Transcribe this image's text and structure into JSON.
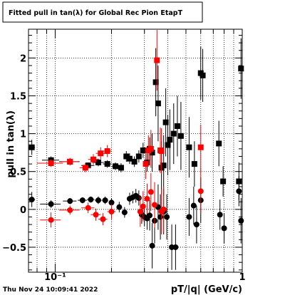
{
  "header": {
    "title": "Fitted pull in tan(λ) for Global Rec Pion EtapT"
  },
  "footer": {
    "timestamp": "Thu Nov 24 10:09:41 2022"
  },
  "chart_data": {
    "type": "scatter",
    "title": "Fitted pull in tan(λ) for Global Rec Pion EtapT",
    "xlabel": "pT/|q| (GeV/c)",
    "ylabel": "pull in tan(λ)",
    "x_scale": "log",
    "xlim": [
      0.072,
      1.0
    ],
    "ylim": [
      -0.83,
      2.38
    ],
    "x_tick_labels": [
      "10⁻¹",
      "1"
    ],
    "y_ticks": [
      -0.5,
      0,
      0.5,
      1,
      1.5,
      2
    ],
    "y_tick_labels": [
      "−0.5",
      "0",
      "0.5",
      "1",
      "1.5",
      "2"
    ],
    "grid": true,
    "legend": "none",
    "series": [
      {
        "marker": "square",
        "color": "#000000",
        "points": [
          [
            0.075,
            0.82,
            0.003,
            0.1
          ],
          [
            0.095,
            0.65,
            0.01,
            0.05
          ],
          [
            0.12,
            0.63,
            0.015,
            0.04
          ],
          [
            0.15,
            0.58,
            0.012,
            0.04
          ],
          [
            0.17,
            0.62,
            0.012,
            0.05
          ],
          [
            0.19,
            0.6,
            0.01,
            0.05
          ],
          [
            0.21,
            0.57,
            0.01,
            0.05
          ],
          [
            0.225,
            0.55,
            0.008,
            0.06
          ],
          [
            0.24,
            0.7,
            0.008,
            0.07
          ],
          [
            0.25,
            0.67,
            0.008,
            0.07
          ],
          [
            0.265,
            0.63,
            0.007,
            0.07
          ],
          [
            0.28,
            0.7,
            0.007,
            0.08
          ],
          [
            0.295,
            0.78,
            0.007,
            0.1
          ],
          [
            0.31,
            0.62,
            0.006,
            0.12
          ],
          [
            0.32,
            0.8,
            0.006,
            0.15
          ],
          [
            0.33,
            0.75,
            0.006,
            0.25
          ],
          [
            0.345,
            1.68,
            0.006,
            0.45
          ],
          [
            0.355,
            1.4,
            0.006,
            0.5
          ],
          [
            0.37,
            0.55,
            0.006,
            0.35
          ],
          [
            0.38,
            0.58,
            0.006,
            0.4
          ],
          [
            0.39,
            1.15,
            0.006,
            0.45
          ],
          [
            0.4,
            0.85,
            0.006,
            0.4
          ],
          [
            0.41,
            0.92,
            0.006,
            0.4
          ],
          [
            0.43,
            1.0,
            0.006,
            0.4
          ],
          [
            0.45,
            1.1,
            0.006,
            0.4
          ],
          [
            0.47,
            0.97,
            0.006,
            0.45
          ],
          [
            0.52,
            0.82,
            0.01,
            0.4
          ],
          [
            0.555,
            0.6,
            0.01,
            0.3
          ],
          [
            0.6,
            1.8,
            0.01,
            0.35
          ],
          [
            0.615,
            1.77,
            0.01,
            0.35
          ],
          [
            0.75,
            0.87,
            0.02,
            0.3
          ],
          [
            0.79,
            0.37,
            0.02,
            0.2
          ],
          [
            0.96,
            0.37,
            0.02,
            0.25
          ],
          [
            0.985,
            1.86,
            0.01,
            0.4
          ]
        ]
      },
      {
        "marker": "square",
        "color": "#ff0000",
        "points": [
          [
            0.095,
            0.61,
            0.015,
            0.05
          ],
          [
            0.12,
            0.63,
            0.012,
            0.05
          ],
          [
            0.145,
            0.55,
            0.01,
            0.06
          ],
          [
            0.16,
            0.66,
            0.01,
            0.07
          ],
          [
            0.175,
            0.74,
            0.01,
            0.08
          ],
          [
            0.19,
            0.77,
            0.01,
            0.08
          ],
          [
            0.305,
            0.6,
            0.008,
            0.2
          ],
          [
            0.315,
            0.78,
            0.008,
            0.2
          ],
          [
            0.325,
            0.8,
            0.008,
            0.25
          ],
          [
            0.35,
            1.97,
            0.008,
            0.4
          ],
          [
            0.365,
            0.78,
            0.008,
            0.3
          ],
          [
            0.37,
            0.77,
            0.008,
            0.3
          ],
          [
            0.6,
            0.82,
            0.012,
            0.3
          ]
        ]
      },
      {
        "marker": "circle",
        "color": "#000000",
        "points": [
          [
            0.075,
            0.13,
            0.003,
            0.1
          ],
          [
            0.095,
            0.07,
            0.012,
            0.05
          ],
          [
            0.12,
            0.11,
            0.01,
            0.04
          ],
          [
            0.14,
            0.12,
            0.008,
            0.04
          ],
          [
            0.155,
            0.13,
            0.007,
            0.04
          ],
          [
            0.17,
            0.12,
            0.007,
            0.05
          ],
          [
            0.185,
            0.12,
            0.007,
            0.05
          ],
          [
            0.2,
            0.09,
            0.006,
            0.06
          ],
          [
            0.22,
            0.03,
            0.006,
            0.07
          ],
          [
            0.235,
            -0.04,
            0.006,
            0.07
          ],
          [
            0.25,
            0.14,
            0.006,
            0.08
          ],
          [
            0.26,
            0.16,
            0.006,
            0.08
          ],
          [
            0.27,
            0.18,
            0.006,
            0.09
          ],
          [
            0.28,
            0.15,
            0.006,
            0.1
          ],
          [
            0.29,
            -0.07,
            0.006,
            0.12
          ],
          [
            0.3,
            -0.1,
            0.006,
            0.12
          ],
          [
            0.31,
            -0.12,
            0.006,
            0.15
          ],
          [
            0.32,
            -0.08,
            0.006,
            0.2
          ],
          [
            0.33,
            -0.48,
            0.006,
            0.3
          ],
          [
            0.34,
            -0.15,
            0.006,
            0.3
          ],
          [
            0.355,
            0.03,
            0.006,
            0.3
          ],
          [
            0.365,
            -0.1,
            0.006,
            0.3
          ],
          [
            0.38,
            -0.03,
            0.006,
            0.3
          ],
          [
            0.395,
            -0.1,
            0.006,
            0.3
          ],
          [
            0.42,
            -0.5,
            0.006,
            0.3
          ],
          [
            0.44,
            -0.5,
            0.006,
            0.3
          ],
          [
            0.52,
            -0.1,
            0.01,
            0.25
          ],
          [
            0.55,
            0.05,
            0.01,
            0.25
          ],
          [
            0.57,
            -0.2,
            0.01,
            0.25
          ],
          [
            0.6,
            0.12,
            0.01,
            0.3
          ],
          [
            0.76,
            -0.07,
            0.02,
            0.2
          ],
          [
            0.8,
            -0.25,
            0.02,
            0.2
          ],
          [
            0.96,
            0.24,
            0.02,
            0.2
          ],
          [
            0.985,
            -0.15,
            0.01,
            0.3
          ]
        ]
      },
      {
        "marker": "circle",
        "color": "#ff0000",
        "points": [
          [
            0.095,
            -0.14,
            0.012,
            0.1
          ],
          [
            0.12,
            -0.01,
            0.015,
            0.06
          ],
          [
            0.15,
            0.02,
            0.012,
            0.07
          ],
          [
            0.165,
            -0.07,
            0.01,
            0.08
          ],
          [
            0.18,
            -0.13,
            0.01,
            0.08
          ],
          [
            0.2,
            -0.03,
            0.01,
            0.1
          ],
          [
            0.285,
            -0.03,
            0.008,
            0.2
          ],
          [
            0.295,
            0.04,
            0.008,
            0.2
          ],
          [
            0.31,
            0.14,
            0.008,
            0.2
          ],
          [
            0.325,
            0.23,
            0.008,
            0.25
          ],
          [
            0.34,
            0.06,
            0.008,
            0.3
          ],
          [
            0.37,
            -0.03,
            0.008,
            0.3
          ],
          [
            0.38,
            0.0,
            0.008,
            0.3
          ],
          [
            0.6,
            0.24,
            0.012,
            0.3
          ]
        ]
      }
    ]
  }
}
